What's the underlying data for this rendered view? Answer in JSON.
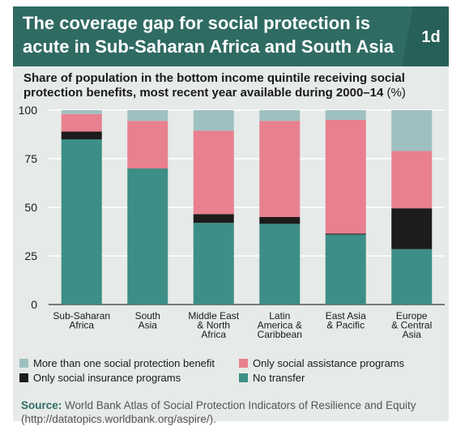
{
  "header": {
    "title_line1": "The coverage gap for social protection is",
    "title_line2": "acute in Sub-Saharan Africa and South Asia",
    "badge": "1d"
  },
  "subtitle": {
    "text": "Share of population in the bottom income quintile receiving social protection benefits, most recent year available during 2000–14",
    "unit": "(%)"
  },
  "colors": {
    "header_bg": "#2f6b63",
    "card_bg": "#e6eae8",
    "more_than_one": "#9fc0c1",
    "assistance": "#e8808f",
    "insurance": "#1c1c1c",
    "no_transfer": "#3d8e86"
  },
  "chart_data": {
    "type": "bar",
    "stacked": true,
    "categories": [
      [
        "Sub-Saharan",
        "Africa"
      ],
      [
        "South",
        "Asia"
      ],
      [
        "Middle East",
        "& North",
        "Africa"
      ],
      [
        "Latin",
        "America &",
        "Caribbean"
      ],
      [
        "East Asia",
        "& Pacific"
      ],
      [
        "Europe",
        "& Central",
        "Asia"
      ]
    ],
    "series": [
      {
        "name": "No transfer",
        "color": "#3d8e86",
        "values": [
          85,
          70,
          42,
          41.5,
          36,
          28.5
        ]
      },
      {
        "name": "Only social insurance programs",
        "color": "#1c1c1c",
        "values": [
          4,
          0,
          4.5,
          3.5,
          0.5,
          21
        ]
      },
      {
        "name": "Only social assistance programs",
        "color": "#e8808f",
        "values": [
          9,
          24.5,
          43,
          49.5,
          58.5,
          29.5
        ]
      },
      {
        "name": "More than one social protection benefit",
        "color": "#9fc0c1",
        "values": [
          2,
          5.5,
          10.5,
          5.5,
          5,
          21
        ]
      }
    ],
    "ylim": [
      0,
      100
    ],
    "yticks": [
      0,
      25,
      50,
      75,
      100
    ],
    "grid": true
  },
  "legend": [
    {
      "label": "More than one social protection benefit",
      "color": "#9fc0c1"
    },
    {
      "label": "Only social assistance programs",
      "color": "#e8808f"
    },
    {
      "label": "Only social insurance programs",
      "color": "#1c1c1c"
    },
    {
      "label": "No transfer",
      "color": "#3d8e86"
    }
  ],
  "source": {
    "label": "Source:",
    "text": "World Bank Atlas of Social Protection Indicators of Resilience and Equity (http://datatopics.worldbank.org/aspire/)."
  }
}
